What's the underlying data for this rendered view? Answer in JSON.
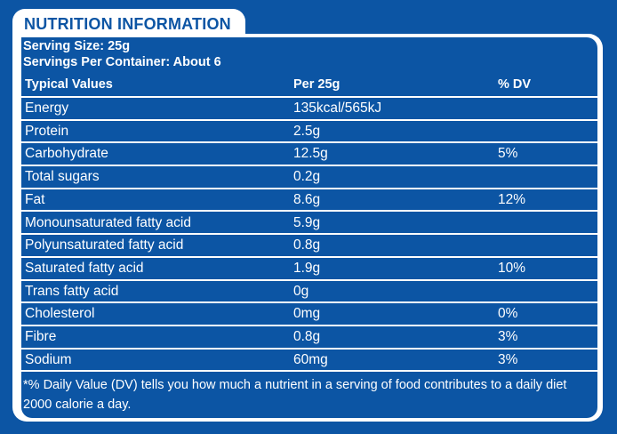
{
  "title": "NUTRITION INFORMATION",
  "serving_size": "Serving Size: 25g",
  "servings_per_container": "Servings Per Container: About 6",
  "headers": {
    "name": "Typical Values",
    "amount": "Per 25g",
    "dv": "% DV"
  },
  "rows": [
    {
      "name": "Energy",
      "amount": "135kcal/565kJ",
      "dv": ""
    },
    {
      "name": "Protein",
      "amount": "2.5g",
      "dv": ""
    },
    {
      "name": "Carbohydrate",
      "amount": "12.5g",
      "dv": "5%"
    },
    {
      "name": "Total sugars",
      "amount": "0.2g",
      "dv": ""
    },
    {
      "name": "Fat",
      "amount": "8.6g",
      "dv": "12%"
    },
    {
      "name": "Monounsaturated fatty acid",
      "amount": "5.9g",
      "dv": ""
    },
    {
      "name": "Polyunsaturated fatty acid",
      "amount": "0.8g",
      "dv": ""
    },
    {
      "name": "Saturated fatty acid",
      "amount": "1.9g",
      "dv": "10%"
    },
    {
      "name": "Trans fatty acid",
      "amount": "0g",
      "dv": ""
    },
    {
      "name": "Cholesterol",
      "amount": "0mg",
      "dv": "0%"
    },
    {
      "name": "Fibre",
      "amount": "0.8g",
      "dv": "3%"
    },
    {
      "name": "Sodium",
      "amount": "60mg",
      "dv": "3%"
    }
  ],
  "footnote": "*% Daily Value (DV) tells you how much a nutrient in a serving of food contributes to a daily diet 2000 calorie a day.",
  "colors": {
    "background": "#0c55a4",
    "foreground": "#ffffff"
  }
}
